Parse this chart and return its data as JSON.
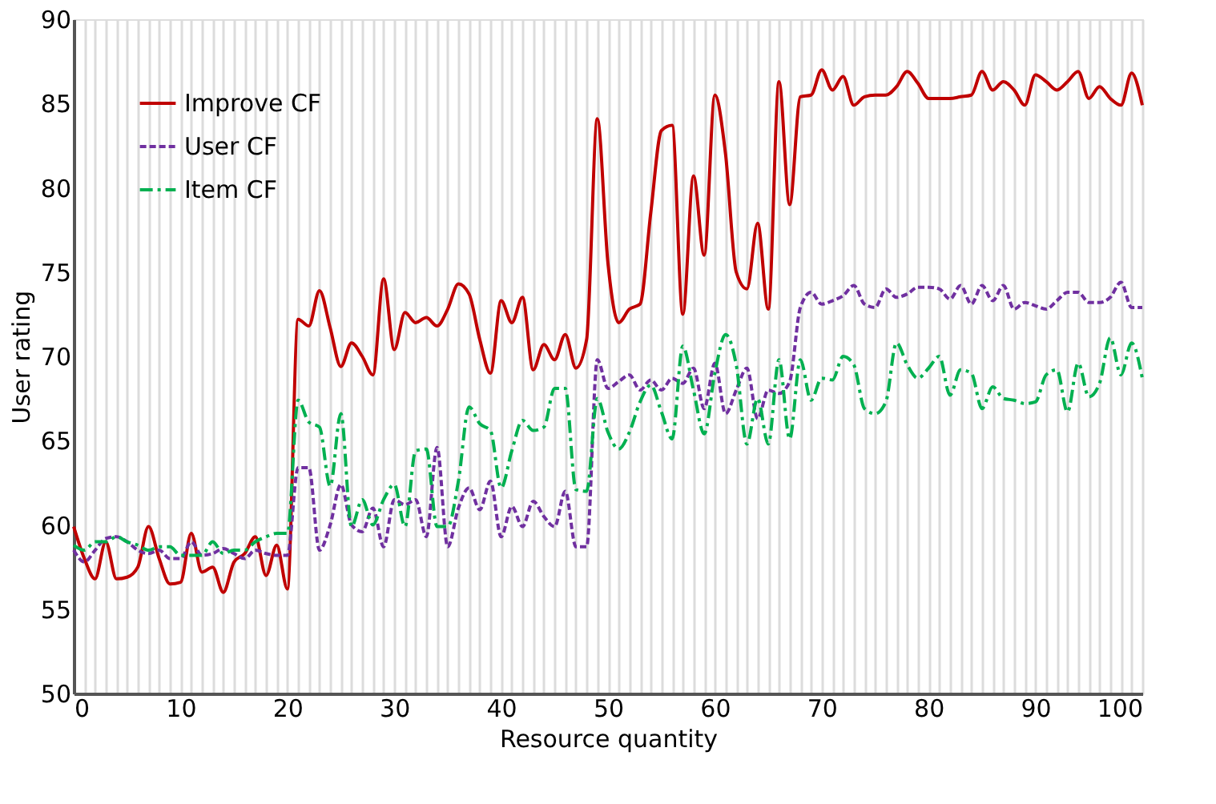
{
  "chart_data": {
    "type": "line",
    "xlabel": "Resource quantity",
    "ylabel": "User rating",
    "xlim": [
      0,
      100
    ],
    "ylim": [
      50,
      90
    ],
    "xticks": [
      0,
      {
        "value": 1,
        "label": null
      },
      {
        "value": 2,
        "label": null
      },
      {
        "value": 3,
        "label": null
      },
      {
        "value": 4,
        "label": null
      },
      {
        "value": 5,
        "label": null
      },
      {
        "value": 6,
        "label": null
      },
      {
        "value": 7,
        "label": null
      },
      {
        "value": 8,
        "label": null
      },
      {
        "value": 9,
        "label": null
      },
      10,
      {
        "value": 11,
        "label": null
      },
      {
        "value": 12,
        "label": null
      },
      {
        "value": 13,
        "label": null
      },
      {
        "value": 14,
        "label": null
      },
      {
        "value": 15,
        "label": null
      },
      {
        "value": 16,
        "label": null
      },
      {
        "value": 17,
        "label": null
      },
      {
        "value": 18,
        "label": null
      },
      {
        "value": 19,
        "label": null
      },
      20,
      {
        "value": 21,
        "label": null
      },
      {
        "value": 22,
        "label": null
      },
      {
        "value": 23,
        "label": null
      },
      {
        "value": 24,
        "label": null
      },
      {
        "value": 25,
        "label": null
      },
      {
        "value": 26,
        "label": null
      },
      {
        "value": 27,
        "label": null
      },
      {
        "value": 28,
        "label": null
      },
      {
        "value": 29,
        "label": null
      },
      30,
      {
        "value": 31,
        "label": null
      },
      {
        "value": 32,
        "label": null
      },
      {
        "value": 33,
        "label": null
      },
      {
        "value": 34,
        "label": null
      },
      {
        "value": 35,
        "label": null
      },
      {
        "value": 36,
        "label": null
      },
      {
        "value": 37,
        "label": null
      },
      {
        "value": 38,
        "label": null
      },
      {
        "value": 39,
        "label": null
      },
      40,
      {
        "value": 41,
        "label": null
      },
      {
        "value": 42,
        "label": null
      },
      {
        "value": 43,
        "label": null
      },
      {
        "value": 44,
        "label": null
      },
      {
        "value": 45,
        "label": null
      },
      {
        "value": 46,
        "label": null
      },
      {
        "value": 47,
        "label": null
      },
      {
        "value": 48,
        "label": null
      },
      {
        "value": 49,
        "label": null
      },
      50,
      {
        "value": 51,
        "label": null
      },
      {
        "value": 52,
        "label": null
      },
      {
        "value": 53,
        "label": null
      },
      {
        "value": 54,
        "label": null
      },
      {
        "value": 55,
        "label": null
      },
      {
        "value": 56,
        "label": null
      },
      {
        "value": 57,
        "label": null
      },
      {
        "value": 58,
        "label": null
      },
      {
        "value": 59,
        "label": null
      },
      60,
      {
        "value": 61,
        "label": null
      },
      {
        "value": 62,
        "label": null
      },
      {
        "value": 63,
        "label": null
      },
      {
        "value": 64,
        "label": null
      },
      {
        "value": 65,
        "label": null
      },
      {
        "value": 66,
        "label": null
      },
      {
        "value": 67,
        "label": null
      },
      {
        "value": 68,
        "label": null
      },
      {
        "value": 69,
        "label": null
      },
      70,
      {
        "value": 71,
        "label": null
      },
      {
        "value": 72,
        "label": null
      },
      {
        "value": 73,
        "label": null
      },
      {
        "value": 74,
        "label": null
      },
      {
        "value": 75,
        "label": null
      },
      {
        "value": 76,
        "label": null
      },
      {
        "value": 77,
        "label": null
      },
      {
        "value": 78,
        "label": null
      },
      {
        "value": 79,
        "label": null
      },
      80,
      {
        "value": 81,
        "label": null
      },
      {
        "value": 82,
        "label": null
      },
      {
        "value": 83,
        "label": null
      },
      {
        "value": 84,
        "label": null
      },
      {
        "value": 85,
        "label": null
      },
      {
        "value": 86,
        "label": null
      },
      {
        "value": 87,
        "label": null
      },
      {
        "value": 88,
        "label": null
      },
      {
        "value": 89,
        "label": null
      },
      90,
      {
        "value": 91,
        "label": null
      },
      {
        "value": 92,
        "label": null
      },
      {
        "value": 93,
        "label": null
      },
      {
        "value": 94,
        "label": null
      },
      {
        "value": 95,
        "label": null
      },
      {
        "value": 96,
        "label": null
      },
      {
        "value": 97,
        "label": null
      },
      {
        "value": 98,
        "label": null
      },
      {
        "value": 99,
        "label": null
      },
      100
    ],
    "yticks": [
      50,
      55,
      60,
      65,
      70,
      75,
      80,
      85,
      90
    ],
    "grid": "x",
    "legend": "top left",
    "marker": "none",
    "x": [
      0,
      1,
      2,
      3,
      4,
      5,
      6,
      7,
      8,
      9,
      10,
      11,
      12,
      13,
      14,
      15,
      16,
      17,
      18,
      19,
      20,
      21,
      22,
      23,
      24,
      25,
      26,
      27,
      28,
      29,
      30,
      31,
      32,
      33,
      34,
      35,
      36,
      37,
      38,
      39,
      40,
      41,
      42,
      43,
      44,
      45,
      46,
      47,
      48,
      49,
      50,
      51,
      52,
      53,
      54,
      55,
      56,
      57,
      58,
      59,
      60,
      61,
      62,
      63,
      64,
      65,
      66,
      67,
      68,
      69,
      70,
      71,
      72,
      73,
      74,
      75,
      76,
      77,
      78,
      79,
      80,
      81,
      82,
      83,
      84,
      85,
      86,
      87,
      88,
      89,
      90,
      91,
      92,
      93,
      94,
      95,
      96,
      97,
      98,
      99,
      100
    ],
    "series": [
      {
        "name": "Improve CF",
        "color": "#c00000",
        "line_style": "solid",
        "values": [
          59.9,
          58,
          56.8,
          59,
          56.8,
          56.9,
          57.5,
          59.9,
          58,
          56.5,
          56.6,
          59.5,
          57.2,
          57.5,
          56,
          57.8,
          58.3,
          59.3,
          57,
          58.8,
          56.2,
          72.2,
          71.8,
          73.9,
          71.7,
          69.4,
          70.8,
          70,
          68.9,
          74.6,
          70.4,
          72.6,
          72,
          72.3,
          71.8,
          72.8,
          74.3,
          73.7,
          71,
          69,
          73.3,
          72,
          73.5,
          69.2,
          70.7,
          69.8,
          71.3,
          69.3,
          71,
          84.1,
          75.5,
          72,
          72.8,
          73.1,
          78.5,
          83.4,
          83.7,
          72.5,
          80.7,
          76,
          85.5,
          82,
          75,
          74,
          77.9,
          72.8,
          86.3,
          79,
          85.4,
          85.5,
          87,
          85.8,
          86.6,
          84.9,
          85.4,
          85.5,
          85.5,
          86,
          86.9,
          86.2,
          85.3,
          85.3,
          85.3,
          85.4,
          85.5,
          86.9,
          85.8,
          86.3,
          85.8,
          84.9,
          86.7,
          86.3,
          85.8,
          86.3,
          86.9,
          85.3,
          86,
          85.3,
          84.9,
          86.8,
          84.9
        ]
      },
      {
        "name": "User CF",
        "color": "#7030a0",
        "line_style": "dashed",
        "values": [
          58.5,
          57.8,
          58.5,
          59.2,
          59.3,
          59,
          58.5,
          58.3,
          58.5,
          58,
          58,
          59,
          58.2,
          58.3,
          58.6,
          58.3,
          58,
          58.5,
          58.3,
          58.2,
          58.2,
          63.4,
          63.4,
          58.5,
          60,
          62.4,
          60,
          59.6,
          61,
          58.7,
          61.5,
          61.2,
          61.5,
          59.3,
          64.6,
          58.7,
          61,
          62.2,
          60.9,
          62.6,
          59.3,
          61.1,
          59.9,
          61.4,
          60.5,
          59.9,
          62,
          58.7,
          58.7,
          69.8,
          68.1,
          68.5,
          68.9,
          68,
          68.6,
          68,
          68.7,
          68.4,
          69.3,
          66.9,
          69.6,
          66.6,
          68,
          69.3,
          66.3,
          68,
          67.8,
          68.5,
          72.9,
          73.8,
          73.1,
          73.3,
          73.6,
          74.2,
          73.1,
          72.9,
          74,
          73.5,
          73.7,
          74.1,
          74.1,
          74,
          73.4,
          74.2,
          73.1,
          74.2,
          73.3,
          74.2,
          72.8,
          73.2,
          73,
          72.8,
          73.3,
          73.8,
          73.8,
          73.2,
          73.2,
          73.5,
          74.4,
          72.9,
          72.9
        ]
      },
      {
        "name": "Item CF",
        "color": "#00b050",
        "line_style": "dashdot",
        "values": [
          58.8,
          58.5,
          59,
          59,
          59.3,
          59,
          58.8,
          58.5,
          58.7,
          58.7,
          58.2,
          58.2,
          58.2,
          59,
          58.3,
          58.5,
          58.5,
          59,
          59.3,
          59.5,
          59.5,
          67.4,
          66.1,
          65.8,
          62.3,
          66.6,
          59.9,
          61.5,
          60,
          61.5,
          62.4,
          59.9,
          64.4,
          64.5,
          59.9,
          59.9,
          62.6,
          67,
          66,
          65.6,
          62.2,
          64.4,
          66.2,
          65.6,
          65.8,
          68.1,
          68.1,
          62.1,
          62,
          67.5,
          65.5,
          64.5,
          65.5,
          67.3,
          68.3,
          66.7,
          65.1,
          70.6,
          68,
          65.4,
          69,
          71.3,
          69.5,
          64.8,
          67.5,
          64.8,
          69.8,
          65.1,
          69.8,
          67.4,
          68.7,
          68.6,
          70,
          69.5,
          66.9,
          66.6,
          67.3,
          70.8,
          69.5,
          68.7,
          69.3,
          70,
          67.7,
          69.2,
          69,
          66.9,
          68.2,
          67.5,
          67.4,
          67.2,
          67.3,
          68.9,
          69.2,
          66.7,
          69.6,
          67.6,
          68.4,
          71.1,
          68.9,
          70.8,
          68.7
        ]
      }
    ]
  }
}
